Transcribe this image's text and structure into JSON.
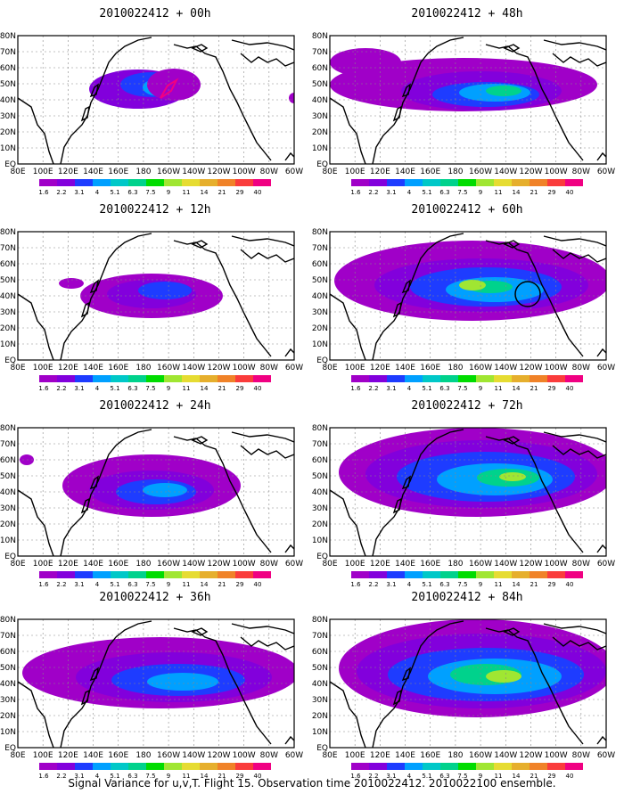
{
  "footer": "Signal Variance for u,v,T. Flight 15. Observation time 2010022412. 2010022100 ensemble.",
  "lat_labels": [
    "80N",
    "70N",
    "60N",
    "50N",
    "40N",
    "30N",
    "20N",
    "10N",
    "EQ"
  ],
  "lon_labels": [
    "80E",
    "100E",
    "120E",
    "140E",
    "160E",
    "180",
    "160W",
    "140W",
    "120W",
    "100W",
    "80W",
    "60W"
  ],
  "colorbar": {
    "labels": [
      "1.6",
      "2.2",
      "3.1",
      "4",
      "5.1",
      "6.3",
      "7.5",
      "9",
      "11",
      "14",
      "21",
      "29",
      "40"
    ],
    "colors": [
      "#a000c8",
      "#8200dc",
      "#1e3cff",
      "#00a0ff",
      "#00c8c8",
      "#00d28c",
      "#00dc00",
      "#a0e632",
      "#e6dc32",
      "#e6af2d",
      "#f08228",
      "#fa3c3c",
      "#f00082"
    ]
  },
  "panels": [
    {
      "title": "2010022412 + 00h"
    },
    {
      "title": "2010022412 + 48h"
    },
    {
      "title": "2010022412 + 12h"
    },
    {
      "title": "2010022412 + 60h"
    },
    {
      "title": "2010022412 + 24h"
    },
    {
      "title": "2010022412 + 72h"
    },
    {
      "title": "2010022412 + 36h"
    },
    {
      "title": "2010022412 + 84h"
    }
  ]
}
